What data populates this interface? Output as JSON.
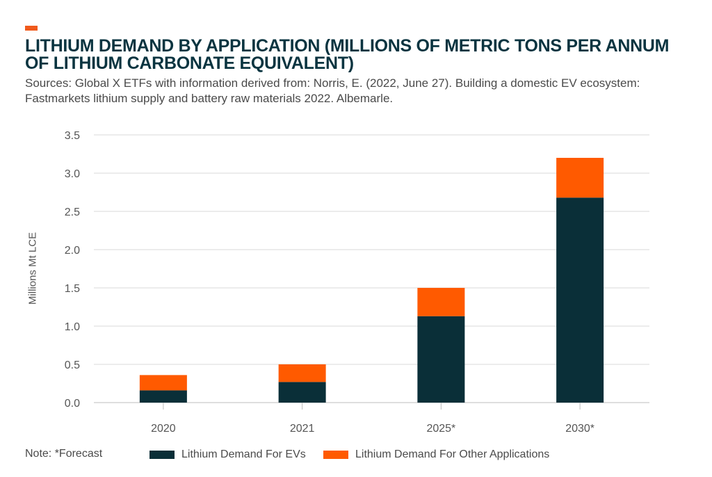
{
  "title": "LITHIUM DEMAND BY APPLICATION (MILLIONS OF METRIC TONS PER ANNUM OF LITHIUM CARBONATE EQUIVALENT)",
  "subtitle": "Sources: Global X ETFs with information derived from: Norris, E. (2022, June 27). Building a domestic EV ecosystem: Fastmarkets lithium supply and battery raw materials 2022. Albemarle.",
  "note": "Note: *Forecast",
  "colors": {
    "accent": "#f05a1c",
    "evs": "#0a2f38",
    "other": "#ff5a00",
    "grid": "#d9d9d9"
  },
  "chart_data": {
    "type": "bar",
    "stacked": true,
    "title": "LITHIUM DEMAND BY APPLICATION (MILLIONS OF METRIC TONS PER ANNUM OF LITHIUM CARBONATE EQUIVALENT)",
    "xlabel": "",
    "ylabel": "Millions Mt LCE",
    "categories": [
      "2020",
      "2021",
      "2025*",
      "2030*"
    ],
    "series": [
      {
        "name": "Lithium Demand For EVs",
        "values": [
          0.16,
          0.27,
          1.13,
          2.68
        ]
      },
      {
        "name": "Lithium Demand For Other Applications",
        "values": [
          0.2,
          0.23,
          0.37,
          0.52
        ]
      }
    ],
    "ylim": [
      0,
      3.5
    ],
    "yticks": [
      "0.0",
      "0.5",
      "1.0",
      "1.5",
      "2.0",
      "2.5",
      "3.0",
      "3.5"
    ],
    "grid": true,
    "legend": "bottom"
  }
}
